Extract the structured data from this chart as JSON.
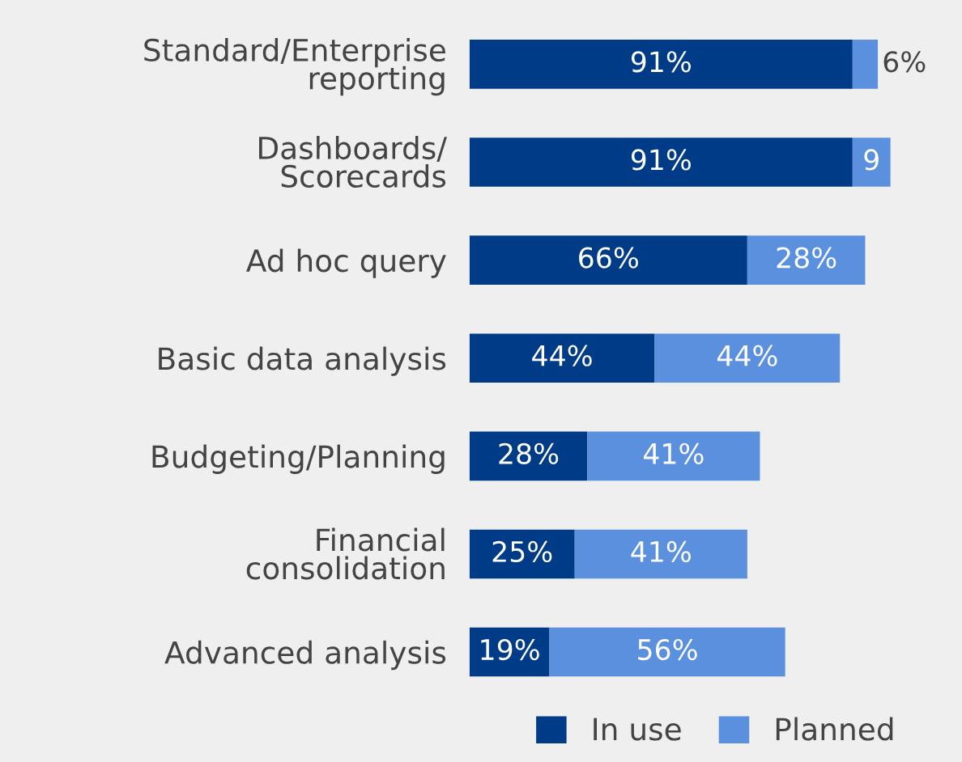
{
  "chart_data": {
    "type": "bar",
    "orientation": "horizontal",
    "stacked": true,
    "legend": "bottom",
    "grid": false,
    "tick_labels": false,
    "categories": [
      "Standard/Enterprise\nreporting",
      "Dashboards/\nScorecards",
      "Ad hoc query",
      "Basic data analysis",
      "Budgeting/Planning",
      "Financial\nconsolidation",
      "Advanced analysis"
    ],
    "series": [
      {
        "name": "In use",
        "color": "#003b87",
        "values": [
          91,
          91,
          66,
          44,
          28,
          25,
          19
        ],
        "value_labels": [
          "91%",
          "91%",
          "66%",
          "44%",
          "28%",
          "25%",
          "19%"
        ]
      },
      {
        "name": "Planned",
        "color": "#5b90de",
        "values": [
          6,
          9,
          28,
          44,
          41,
          41,
          56
        ],
        "value_labels": [
          "6%",
          "9",
          "28%",
          "44%",
          "41%",
          "41%",
          "56%"
        ]
      }
    ]
  }
}
